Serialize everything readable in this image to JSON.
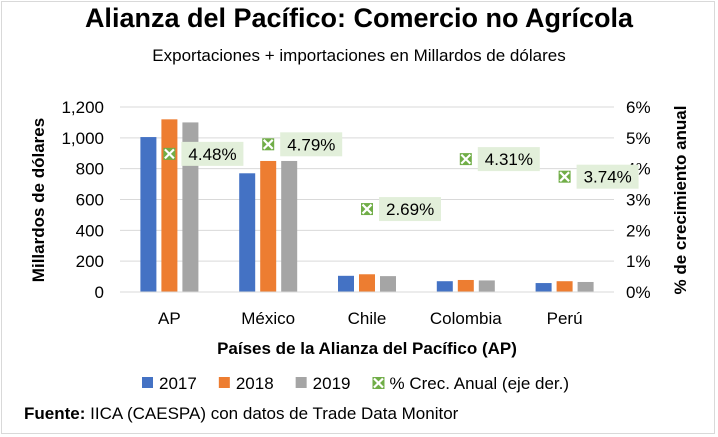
{
  "chart_data": {
    "type": "bar",
    "title": "Alianza del Pacífico: Comercio no Agrícola",
    "subtitle": "Exportaciones + importaciones en Millardos de dólares",
    "xlabel": "Países de la Alianza del Pacífico (AP)",
    "ylabel": "Millardos de dólares",
    "y2label": "% de crecimiento anual",
    "categories": [
      "AP",
      "México",
      "Chile",
      "Colombia",
      "Perú"
    ],
    "ylim": [
      0,
      1200
    ],
    "yticks": [
      "0",
      "200",
      "400",
      "600",
      "800",
      "1,000",
      "1,200"
    ],
    "y2lim": [
      0,
      6
    ],
    "y2ticks": [
      "0%",
      "1%",
      "2%",
      "3%",
      "4%",
      "5%",
      "6%"
    ],
    "grid": true,
    "legend": "bottom",
    "series": [
      {
        "name": "2017",
        "type": "bar",
        "color": "#4472c4",
        "values": [
          1005,
          770,
          105,
          70,
          58
        ]
      },
      {
        "name": "2018",
        "type": "bar",
        "color": "#ed7d31",
        "values": [
          1120,
          850,
          115,
          78,
          70
        ]
      },
      {
        "name": "2019",
        "type": "bar",
        "color": "#a5a5a5",
        "values": [
          1100,
          850,
          103,
          75,
          65
        ]
      },
      {
        "name": "% Crec. Anual (eje der.)",
        "type": "scatter",
        "axis": "right",
        "color": "#70ad47",
        "values": [
          4.48,
          4.79,
          2.69,
          4.31,
          3.74
        ],
        "labels": [
          "4.48%",
          "4.79%",
          "2.69%",
          "4.31%",
          "3.74%"
        ]
      }
    ]
  },
  "footer": {
    "source_label": "Fuente:",
    "source_text": "IICA (CAESPA) con datos de Trade Data Monitor"
  }
}
